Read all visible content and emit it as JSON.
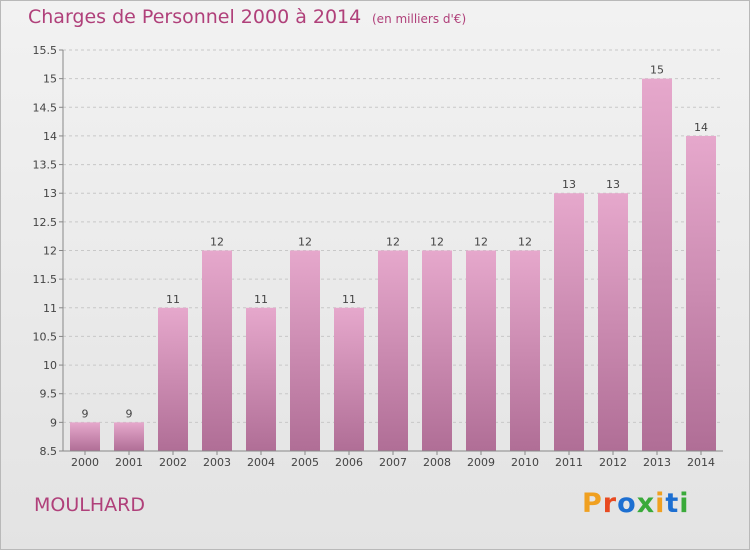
{
  "header": {
    "title": "Charges de Personnel 2000 à 2014",
    "subtitle": "(en milliers d'€)"
  },
  "footer": {
    "place": "MOULHARD",
    "logo_text": "Proxiti"
  },
  "colors": {
    "title": "#b0407a",
    "bar_top": "#e6a8cc",
    "bar_bottom": "#b06e96",
    "logo": [
      "#f0a020",
      "#e84a20",
      "#1d6fd1",
      "#3aaa3a",
      "#f0a020",
      "#1d6fd1",
      "#3aaa3a"
    ]
  },
  "chart_data": {
    "type": "bar",
    "title": "Charges de Personnel 2000 à 2014",
    "subtitle": "(en milliers d'€)",
    "xlabel": "",
    "ylabel": "",
    "categories": [
      "2000",
      "2001",
      "2002",
      "2003",
      "2004",
      "2005",
      "2006",
      "2007",
      "2008",
      "2009",
      "2010",
      "2011",
      "2012",
      "2013",
      "2014"
    ],
    "values": [
      9,
      9,
      11,
      12,
      11,
      12,
      11,
      12,
      12,
      12,
      12,
      13,
      13,
      15,
      14
    ],
    "labels": [
      "9",
      "9",
      "11",
      "12",
      "11",
      "12",
      "11",
      "12",
      "12",
      "12",
      "12",
      "13",
      "13",
      "15",
      "14"
    ],
    "bar_values_on_axis": [
      9,
      9,
      11,
      12,
      11,
      12,
      11,
      12,
      12,
      12,
      12,
      13,
      13,
      15,
      14
    ],
    "ylim": [
      8.5,
      15.5
    ],
    "yticks": [
      8.5,
      9,
      9.5,
      10,
      10.5,
      11,
      11.5,
      12,
      12.5,
      13,
      13.5,
      14,
      14.5,
      15,
      15.5
    ],
    "ytick_labels": [
      "8.5",
      "9",
      "9.5",
      "10",
      "10.5",
      "11",
      "11.5",
      "12",
      "12.5",
      "13",
      "13.5",
      "14",
      "14.5",
      "15",
      "15.5"
    ],
    "grid": true,
    "legend": "none"
  }
}
